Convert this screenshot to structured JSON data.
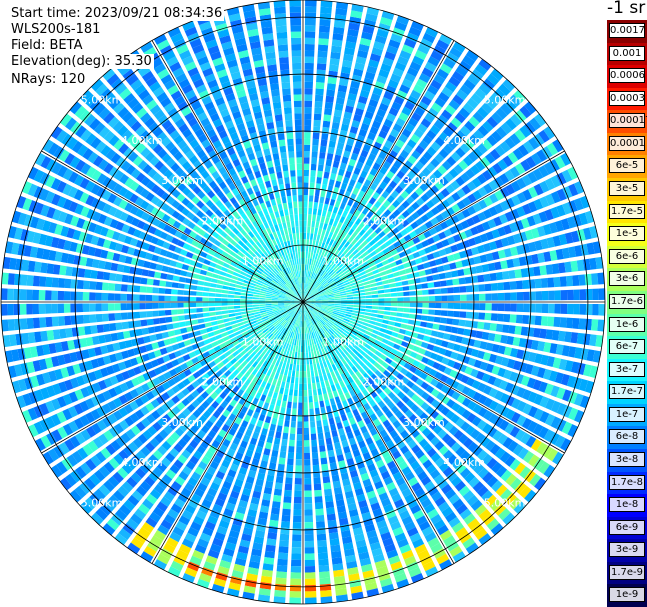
{
  "header": {
    "start_time": "Start time: 2023/09/21 08:34:36",
    "device": "WLS200s-181",
    "field": "Field: BETA",
    "elevation": "Elevation(deg): 35.30",
    "nrays": "NRays: 120"
  },
  "chart_data": {
    "type": "heatmap",
    "projection": "polar (PPI scan)",
    "n_rays": 120,
    "max_range_km": 5.3,
    "range_rings_km": [
      1,
      2,
      3,
      4,
      5
    ],
    "range_ring_labels": [
      "1.00km",
      "2.00km",
      "3.00km",
      "4.00km",
      "5.00km"
    ],
    "spokes_deg": [
      0,
      30,
      60,
      90,
      120,
      150,
      180,
      210,
      240,
      270,
      300,
      330
    ],
    "colorbar": {
      "title": "-1 sr",
      "ticks": [
        "0.0017",
        "0.001",
        "0.0006",
        "0.0003",
        "0.00017",
        "0.0001",
        "6e-5",
        "3e-5",
        "1.7e-5",
        "1e-5",
        "6e-6",
        "3e-6",
        "1.7e-6",
        "1e-6",
        "6e-7",
        "3e-7",
        "1.7e-7",
        "1e-7",
        "6e-8",
        "3e-8",
        "1.7e-8",
        "1e-8",
        "6e-9",
        "3e-9",
        "1.7e-9",
        "1e-9"
      ],
      "colors": [
        "#8b0000",
        "#b80000",
        "#dd0000",
        "#ff1a00",
        "#ff4d00",
        "#ff8000",
        "#ffa500",
        "#ffc800",
        "#ffe600",
        "#f5ff1a",
        "#d4ff3a",
        "#aaff5c",
        "#80ff80",
        "#5cffaa",
        "#3affd4",
        "#1af5ff",
        "#00d4ff",
        "#00aaff",
        "#0080ff",
        "#0055ff",
        "#002aff",
        "#0000ff",
        "#0000d4",
        "#0000aa",
        "#000080",
        "#000050"
      ]
    },
    "notes": "Near range is cyan (~1e-7); mid/far ranges blue (~3e-8 to 6e-8); a strong high-backscatter arc appears at ~5 km to the south-southeast (yellow-orange-red)."
  }
}
